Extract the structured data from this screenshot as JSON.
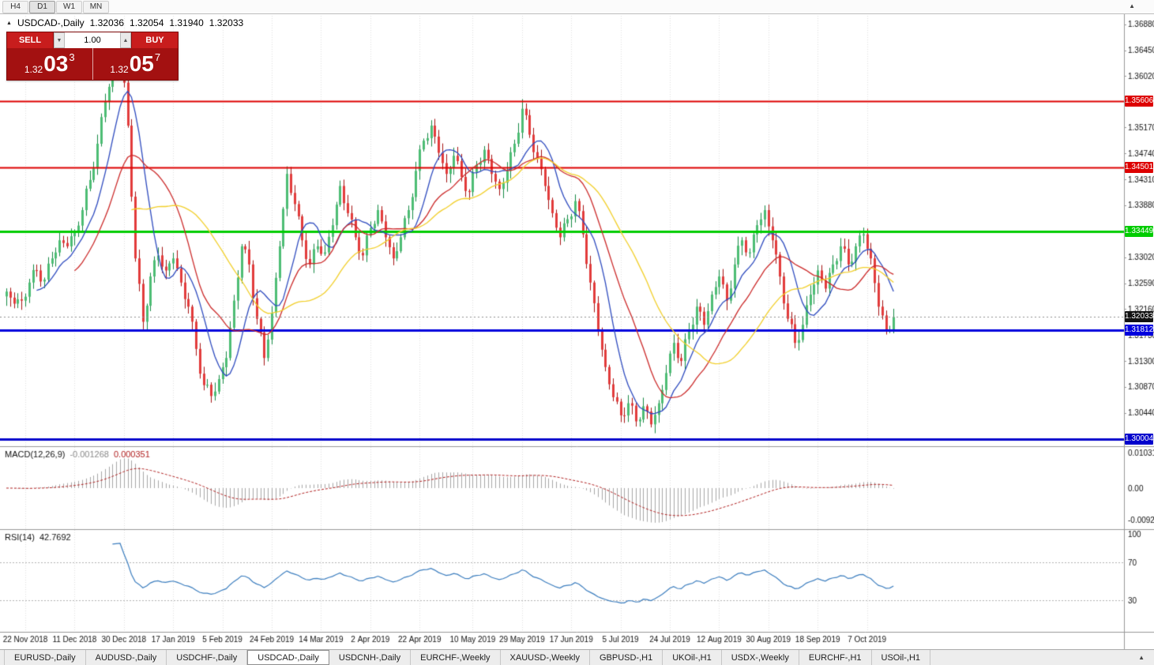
{
  "icons": {
    "collapse": "▲",
    "toolbar_scroll": "▲",
    "tabbar_scroll": "▲",
    "volume_down": "▼",
    "volume_up": "▲"
  },
  "toolbar": {
    "timeframes": [
      "H4",
      "D1",
      "W1",
      "MN"
    ],
    "active": "D1"
  },
  "header": {
    "symbol": "USDCAD-,Daily",
    "open": "1.32036",
    "high": "1.32054",
    "low": "1.31940",
    "close": "1.32033"
  },
  "trade_panel": {
    "sell_label": "SELL",
    "buy_label": "BUY",
    "volume": "1.00",
    "sell_price": {
      "base": "1.32",
      "pips": "03",
      "pipette": "3"
    },
    "buy_price": {
      "base": "1.32",
      "pips": "05",
      "pipette": "7"
    }
  },
  "tabs": {
    "active_index": 3,
    "items": [
      "EURUSD-,Daily",
      "AUDUSD-,Daily",
      "USDCHF-,Daily",
      "USDCAD-,Daily",
      "USDCNH-,Daily",
      "EURCHF-,Weekly",
      "XAUUSD-,Weekly",
      "GBPUSD-,H1",
      "UKOil-,H1",
      "USDX-,Weekly",
      "EURCHF-,H1",
      "USOil-,H1"
    ]
  },
  "chart_data": {
    "type": "candlestick",
    "title": "USDCAD-,Daily",
    "y_axis": {
      "top_price": 1.3702,
      "bottom_price": 1.2994,
      "tick_labels": [
        "1.36880",
        "1.36450",
        "1.36020",
        "1.35170",
        "1.34740",
        "1.34310",
        "1.33880",
        "1.33020",
        "1.32590",
        "1.32160",
        "1.31730",
        "1.31300",
        "1.30870",
        "1.30440"
      ]
    },
    "x_labels": [
      "22 Nov 2018",
      "11 Dec 2018",
      "30 Dec 2018",
      "17 Jan 2019",
      "5 Feb 2019",
      "24 Feb 2019",
      "14 Mar 2019",
      "2 Apr 2019",
      "22 Apr 2019",
      "10 May 2019",
      "29 May 2019",
      "17 Jun 2019",
      "5 Jul 2019",
      "24 Jul 2019",
      "12 Aug 2019",
      "30 Aug 2019",
      "18 Sep 2019",
      "7 Oct 2019"
    ],
    "closes": [
      1.3245,
      1.3225,
      1.323,
      1.326,
      1.328,
      1.3265,
      1.33,
      1.333,
      1.332,
      1.3345,
      1.338,
      1.343,
      1.349,
      1.356,
      1.362,
      1.3655,
      1.352,
      1.33,
      1.3195,
      1.327,
      1.3305,
      1.328,
      1.33,
      1.326,
      1.322,
      1.315,
      1.309,
      1.3072,
      1.31,
      1.3135,
      1.323,
      1.332,
      1.329,
      1.32,
      1.3135,
      1.321,
      1.332,
      1.344,
      1.339,
      1.333,
      1.329,
      1.332,
      1.331,
      1.3355,
      1.342,
      1.3375,
      1.3335,
      1.3305,
      1.335,
      1.338,
      1.3335,
      1.33,
      1.3335,
      1.338,
      1.3445,
      1.3495,
      1.352,
      1.3475,
      1.344,
      1.347,
      1.3435,
      1.341,
      1.3455,
      1.348,
      1.344,
      1.3415,
      1.3445,
      1.349,
      1.3548,
      1.3505,
      1.3465,
      1.342,
      1.3375,
      1.3335,
      1.3365,
      1.3395,
      1.334,
      1.326,
      1.318,
      1.312,
      1.307,
      1.304,
      1.306,
      1.303,
      1.3055,
      1.3025,
      1.306,
      1.311,
      1.316,
      1.313,
      1.318,
      1.322,
      1.319,
      1.324,
      1.327,
      1.323,
      1.329,
      1.333,
      1.331,
      1.3355,
      1.338,
      1.333,
      1.327,
      1.32,
      1.316,
      1.319,
      1.324,
      1.328,
      1.325,
      1.329,
      1.332,
      1.329,
      1.332,
      1.334,
      1.33,
      1.322,
      1.318,
      1.3203
    ],
    "price_lines": [
      {
        "label": "1.35606",
        "price": 1.35606,
        "color": "#dd0000",
        "width": 2
      },
      {
        "label": "1.34501",
        "price": 1.34501,
        "color": "#dd0000",
        "width": 2
      },
      {
        "label": "1.33449",
        "price": 1.33449,
        "color": "#00cc00",
        "width": 3
      },
      {
        "label": "1.31812",
        "price": 1.31812,
        "color": "#0000dd",
        "width": 3
      },
      {
        "label": "1.30004",
        "price": 1.30004,
        "color": "#0000cc",
        "width": 3
      }
    ],
    "current_price": {
      "label": "1.32033",
      "value": 1.32033,
      "badge_color": "#111111"
    },
    "candle_colors": {
      "up": "#4dbd74",
      "up_border": "#158a44",
      "down": "#e23b3b",
      "down_border": "#a51212"
    },
    "moving_averages": [
      {
        "name": "fast",
        "period": 9,
        "color": "#2e4bbf"
      },
      {
        "name": "medium",
        "period": 19,
        "color": "#cc2a2a"
      },
      {
        "name": "slow",
        "period": 34,
        "color": "#f2cf2a"
      }
    ],
    "indicators": {
      "macd": {
        "label": "MACD(12,26,9)",
        "value": "-0.001268",
        "signal": "0.000351",
        "scale_labels": [
          "0.010311",
          "0.00",
          "-0.00920"
        ],
        "histogram_color": "#a6a6a6",
        "signal_color": "#b22222"
      },
      "rsi": {
        "label": "RSI(14)",
        "value": "42.7692",
        "levels": [
          "100",
          "70",
          "30"
        ],
        "line_color": "#3c7ebf"
      }
    }
  }
}
